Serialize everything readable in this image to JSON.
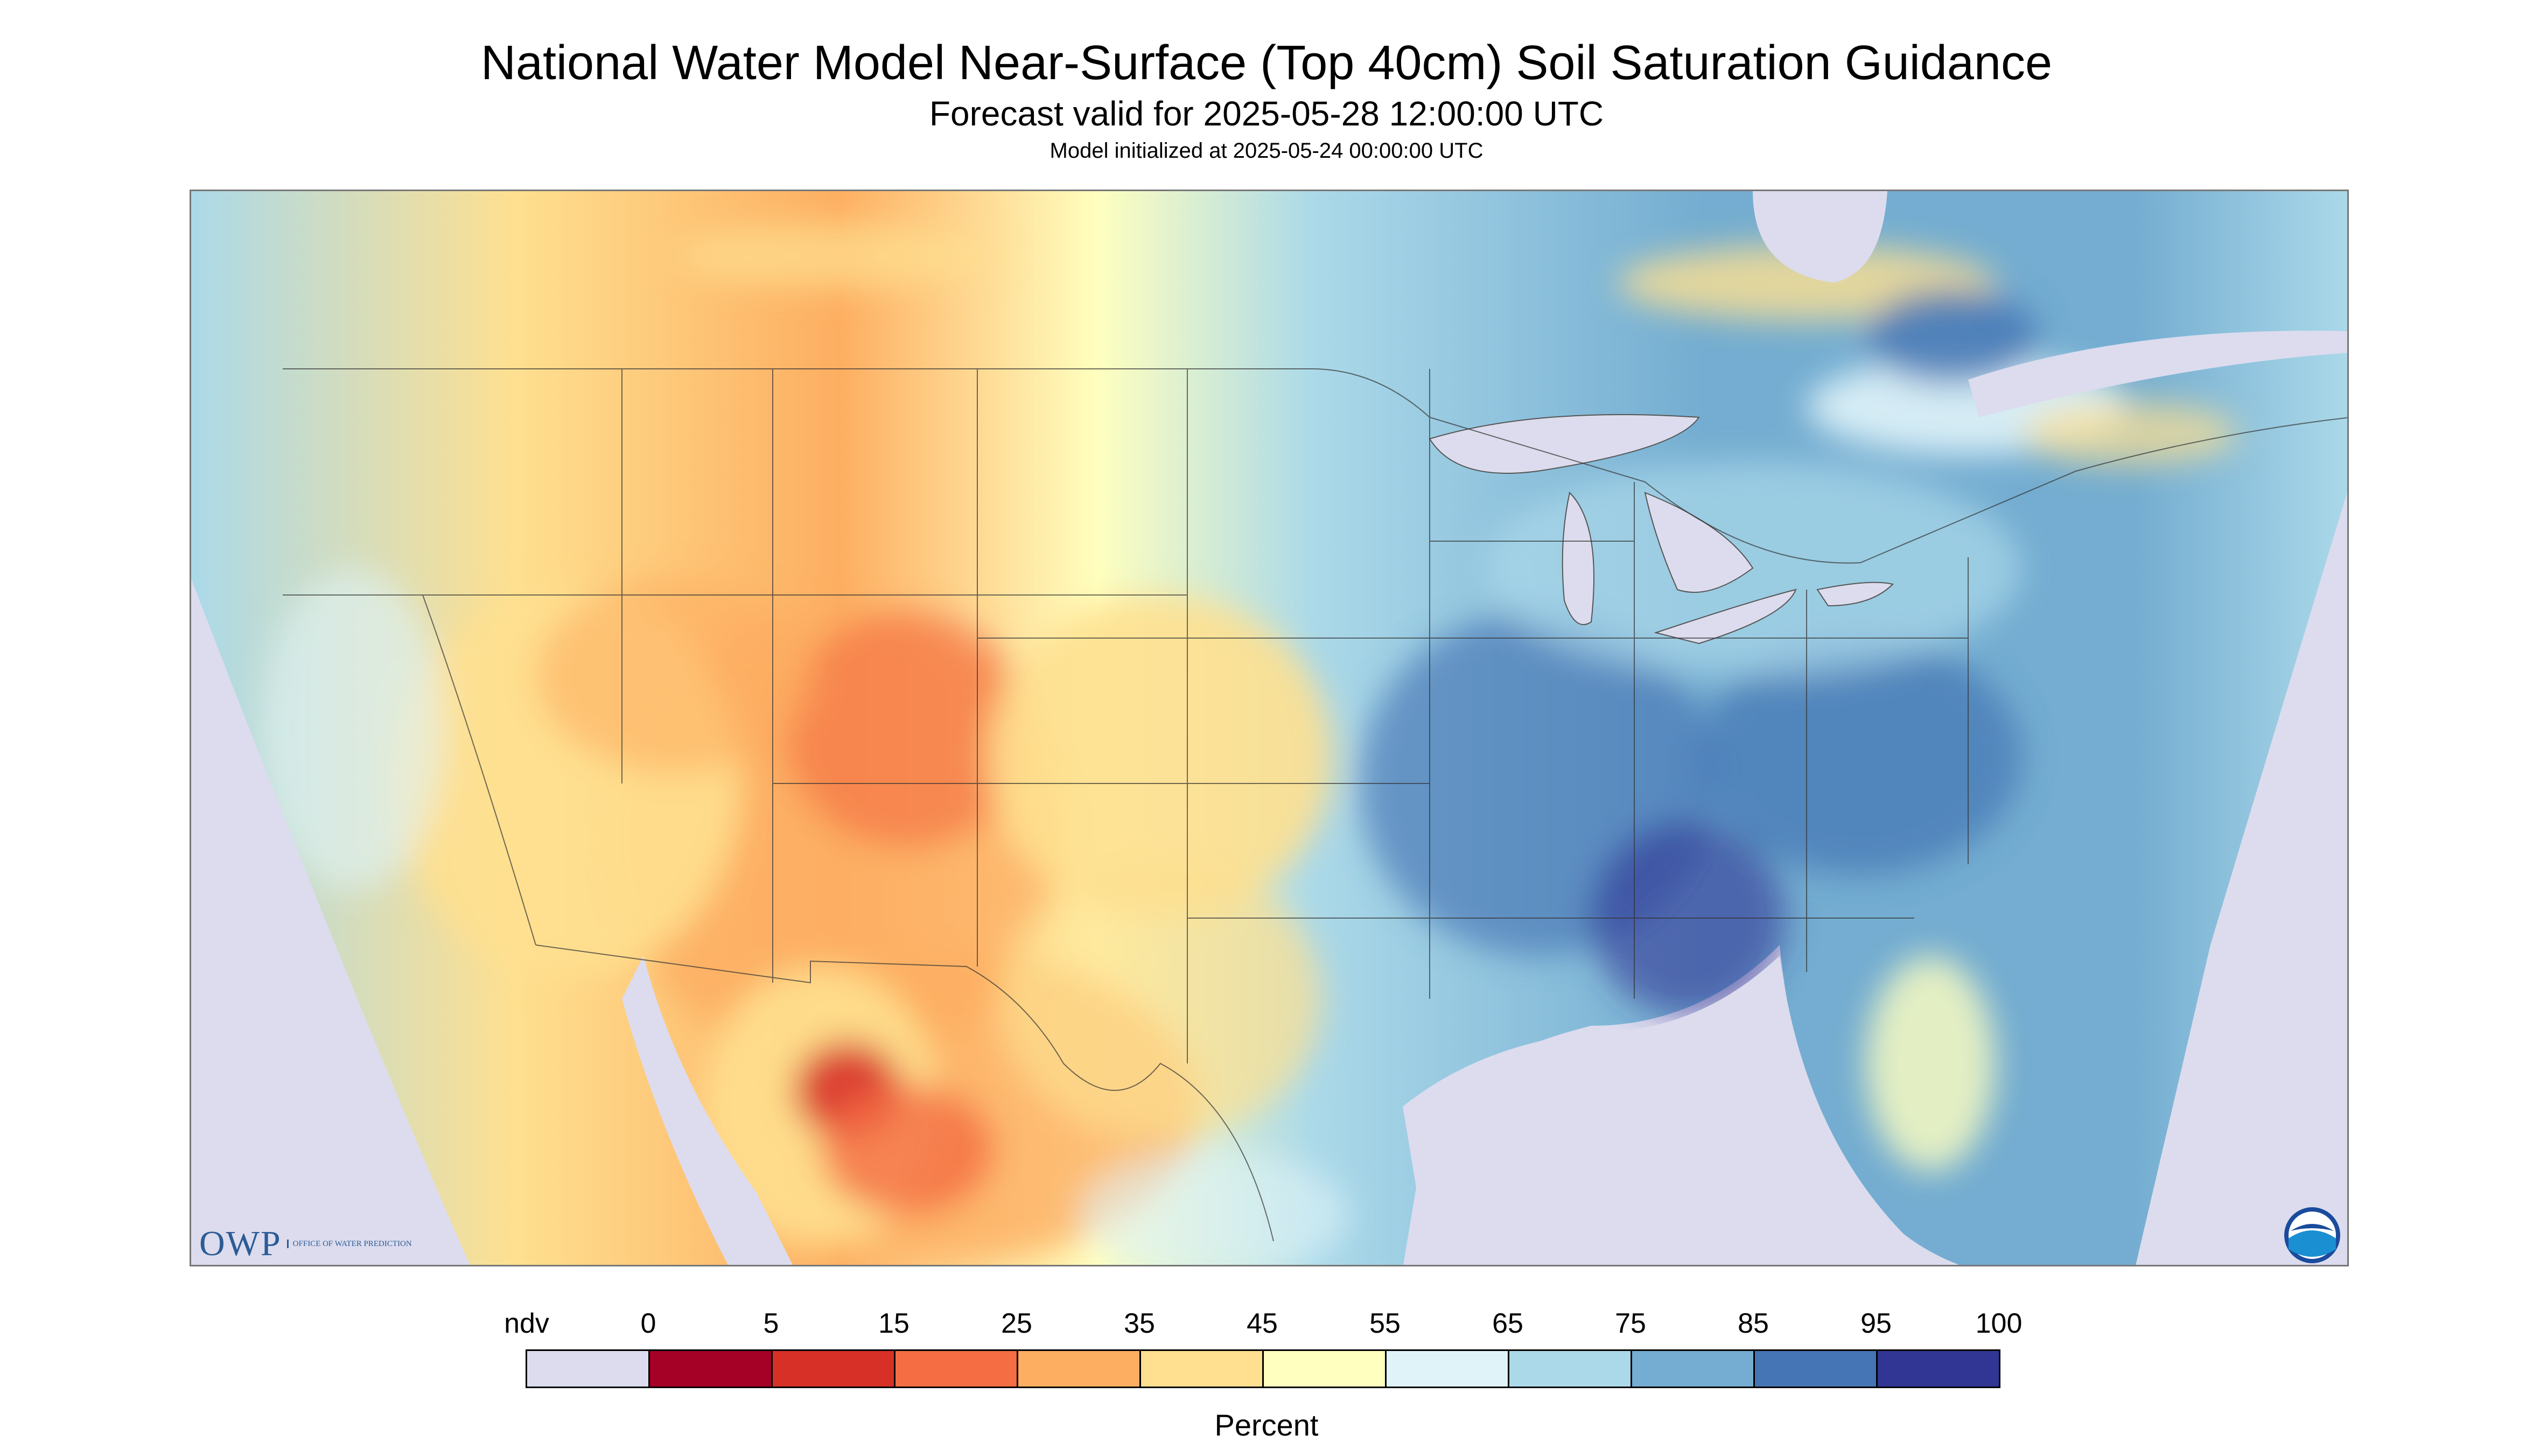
{
  "header": {
    "title": "National Water Model Near-Surface (Top 40cm) Soil Saturation Guidance",
    "valid": "Forecast valid for 2025-05-28 12:00:00 UTC",
    "init": "Model initialized at 2025-05-24 00:00:00 UTC"
  },
  "map": {
    "logo_owp": "OWP",
    "logo_owp_sub": "OFFICE OF WATER PREDICTION",
    "logo_noaa": "NOAA",
    "nodata_color": "#dcdcee",
    "water_color": "#dcdcee",
    "border_color": "#333333"
  },
  "legend": {
    "labels": [
      "ndv",
      "0",
      "5",
      "15",
      "25",
      "35",
      "45",
      "55",
      "65",
      "75",
      "85",
      "95",
      "100"
    ],
    "colors": [
      "#dcdcee",
      "#a50026",
      "#d73027",
      "#f46d43",
      "#fdae61",
      "#fee090",
      "#ffffbf",
      "#e0f3f8",
      "#abd9e9",
      "#74add1",
      "#4575b4",
      "#313695"
    ],
    "unit": "Percent"
  }
}
